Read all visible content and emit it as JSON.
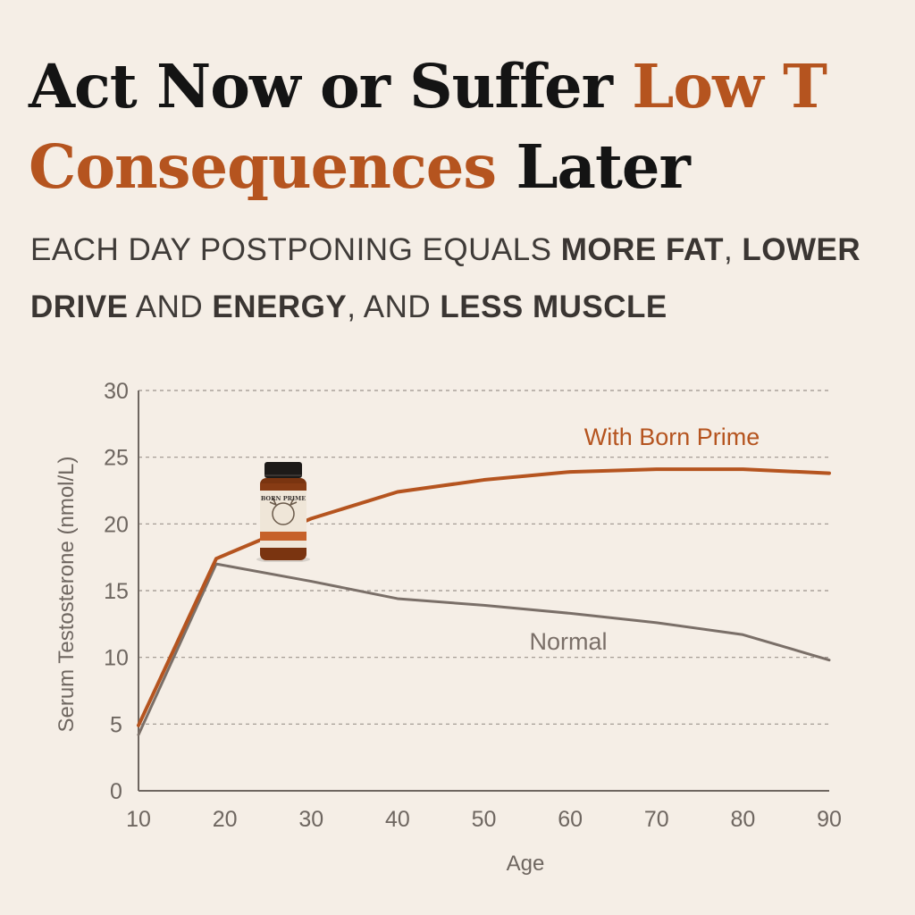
{
  "headline": {
    "part1": "Act Now or Suffer ",
    "accent": "Low T Consequences",
    "part2": " Later"
  },
  "subhead": {
    "t1": "EACH DAY POSTPONING EQUALS ",
    "b1": "MORE FAT",
    "t2": ", ",
    "b2": "LOWER DRIVE",
    "t3": " AND ",
    "b3": "ENERGY",
    "t4": ", AND ",
    "b4": "LESS MUSCLE"
  },
  "product": {
    "name": "BORN PRIME"
  },
  "colors": {
    "accent": "#b5541f",
    "normal": "#7a6f68",
    "axis": "#6e6660",
    "text": "#141414"
  },
  "chart_data": {
    "type": "line",
    "xlabel": "Age",
    "ylabel": "Serum Testosterone (nmol/L)",
    "xlim": [
      10,
      90
    ],
    "ylim": [
      0,
      30
    ],
    "xticks": [
      10,
      20,
      30,
      40,
      50,
      60,
      70,
      80,
      90
    ],
    "yticks": [
      0,
      5,
      10,
      15,
      20,
      25,
      30
    ],
    "grid": "horizontal-dashed",
    "series": [
      {
        "name": "With Born Prime",
        "color": "#b5541f",
        "x": [
          10,
          19,
          30,
          40,
          50,
          60,
          70,
          80,
          90
        ],
        "y": [
          4.9,
          17.4,
          20.4,
          22.4,
          23.3,
          23.9,
          24.1,
          24.1,
          23.8
        ]
      },
      {
        "name": "Normal",
        "color": "#7a6f68",
        "x": [
          10,
          19,
          30,
          40,
          50,
          60,
          70,
          80,
          90
        ],
        "y": [
          4.2,
          17.0,
          15.7,
          14.4,
          13.9,
          13.3,
          12.6,
          11.7,
          9.8
        ]
      }
    ]
  }
}
